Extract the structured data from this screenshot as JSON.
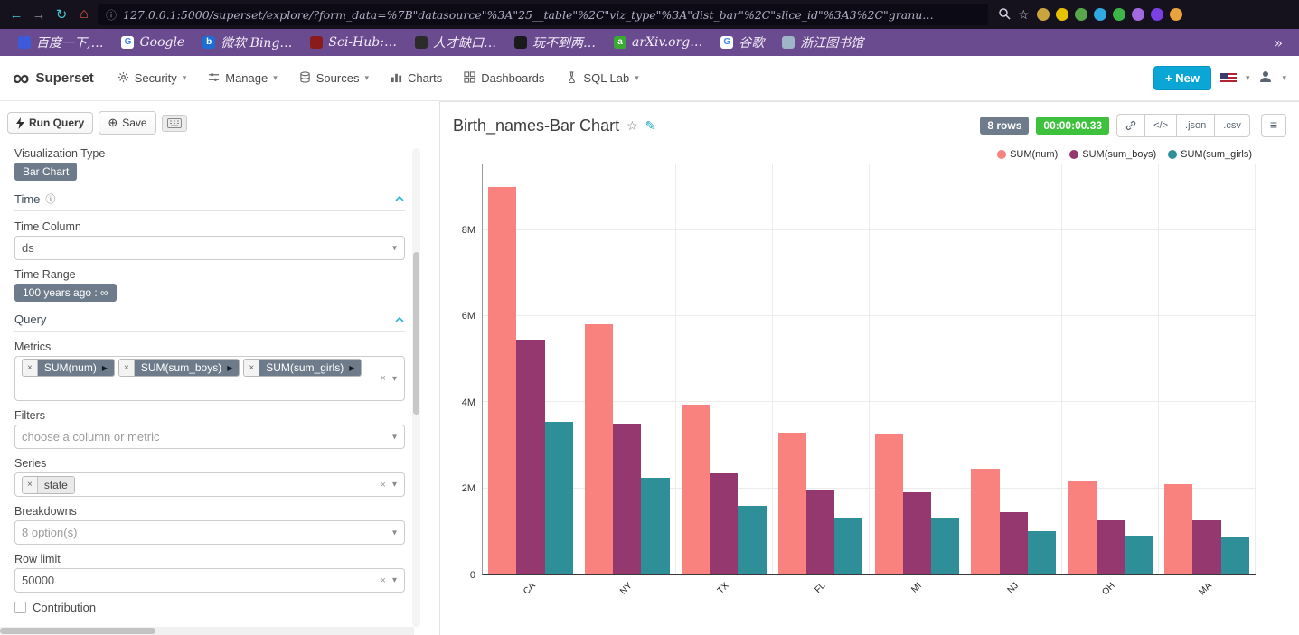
{
  "colors": {
    "accent": "#0aa6d6",
    "timer_green": "#3ec23e",
    "badge_gray": "#6e7b8a",
    "bookmarks_bar": "#6a4b8f",
    "section_chevron": "#2ab7d0"
  },
  "browser": {
    "url": "127.0.0.1:5000/superset/explore/?form_data=%7B\"datasource\"%3A\"25__table\"%2C\"viz_type\"%3A\"dist_bar\"%2C\"slice_id\"%3A3%2C\"granu…",
    "bookmarks": [
      {
        "label": "百度一下,…",
        "icon_color": "#3b5bdb",
        "glyph": "",
        "glyph_color": "#ffffff"
      },
      {
        "label": "Google",
        "icon_color": "#ffffff",
        "glyph": "G",
        "glyph_color": "#4285F4"
      },
      {
        "label": "微软 Bing…",
        "icon_color": "#1a6fd4",
        "glyph": "b",
        "glyph_color": "#ffffff"
      },
      {
        "label": "Sci-Hub:…",
        "icon_color": "#8b1a1a",
        "glyph": "",
        "glyph_color": "#ffffff"
      },
      {
        "label": "人才缺口…",
        "icon_color": "#2b2b2b",
        "glyph": "",
        "glyph_color": "#ffffff"
      },
      {
        "label": "玩不到两…",
        "icon_color": "#1a1a1a",
        "glyph": "",
        "glyph_color": "#ffffff"
      },
      {
        "label": "arXiv.org…",
        "icon_color": "#3aaa35",
        "glyph": "a",
        "glyph_color": "#ffffff"
      },
      {
        "label": "谷歌",
        "icon_color": "#ffffff",
        "glyph": "G",
        "glyph_color": "#4285F4"
      },
      {
        "label": "浙江图书馆",
        "icon_color": "#9fb6c9",
        "glyph": "",
        "glyph_color": "#ffffff"
      }
    ],
    "more_chevron": "»",
    "extensions": [
      "#caa53d",
      "#e5c100",
      "#57a64a",
      "#31a8e0",
      "#3cb44a",
      "#a36ae0",
      "#7b3fe4",
      "#e8a33d"
    ]
  },
  "navbar": {
    "brand": "Superset",
    "infinity": "∞",
    "items": [
      {
        "label": "Security",
        "caret": "▾"
      },
      {
        "label": "Manage",
        "caret": "▾"
      },
      {
        "label": "Sources",
        "caret": "▾"
      },
      {
        "label": "Charts",
        "caret": ""
      },
      {
        "label": "Dashboards",
        "caret": ""
      },
      {
        "label": "SQL Lab",
        "caret": "▾"
      }
    ],
    "new_button": "+ New"
  },
  "panel": {
    "run_query": "Run Query",
    "save": "Save",
    "viz_type_label": "Visualization Type",
    "viz_type_value": "Bar Chart",
    "time_section": "Time",
    "query_section": "Query",
    "time_column_label": "Time Column",
    "time_column_value": "ds",
    "time_range_label": "Time Range",
    "time_range_value": "100 years ago : ∞",
    "metrics_label": "Metrics",
    "metrics": [
      "SUM(num)",
      "SUM(sum_boys)",
      "SUM(sum_girls)"
    ],
    "filters_label": "Filters",
    "filters_placeholder": "choose a column or metric",
    "series_label": "Series",
    "series_value": "state",
    "breakdowns_label": "Breakdowns",
    "breakdowns_placeholder": "8 option(s)",
    "row_limit_label": "Row limit",
    "row_limit_value": "50000",
    "contribution_label": "Contribution"
  },
  "chart": {
    "title": "Birth_names-Bar Chart",
    "rows_badge": "8 rows",
    "timer_badge": "00:00:00.33",
    "code_button": "</>",
    "export_json": ".json",
    "export_csv": ".csv"
  },
  "chart_data": {
    "type": "bar",
    "title": "Birth_names-Bar Chart",
    "categories": [
      "CA",
      "NY",
      "TX",
      "FL",
      "MI",
      "NJ",
      "OH",
      "MA"
    ],
    "series": [
      {
        "name": "SUM(num)",
        "color": "#f9817e",
        "values": [
          9000000,
          5800000,
          3950000,
          3300000,
          3250000,
          2450000,
          2150000,
          2100000
        ]
      },
      {
        "name": "SUM(sum_boys)",
        "color": "#94386f",
        "values": [
          5450000,
          3500000,
          2350000,
          1950000,
          1900000,
          1450000,
          1250000,
          1250000
        ]
      },
      {
        "name": "SUM(sum_girls)",
        "color": "#2f8f99",
        "values": [
          3550000,
          2250000,
          1600000,
          1300000,
          1300000,
          1000000,
          900000,
          850000
        ]
      }
    ],
    "yticks": [
      {
        "label": "0",
        "value": 0
      },
      {
        "label": "2M",
        "value": 2000000
      },
      {
        "label": "4M",
        "value": 4000000
      },
      {
        "label": "6M",
        "value": 6000000
      },
      {
        "label": "8M",
        "value": 8000000
      }
    ],
    "ylim": [
      0,
      9520000
    ],
    "xlabel": "",
    "ylabel": "",
    "grid": true,
    "legend_position": "top-right"
  }
}
